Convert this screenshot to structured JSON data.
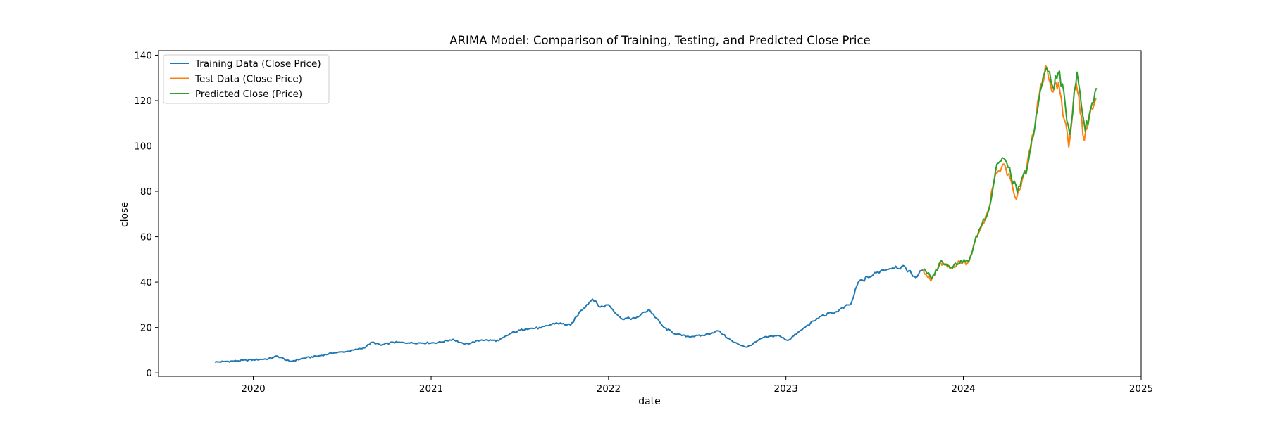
{
  "chart_data": {
    "type": "line",
    "title": "ARIMA Model: Comparison of Training, Testing, and Predicted Close Price",
    "xlabel": "date",
    "ylabel": "close",
    "xlim": [
      "2019-06-20",
      "2025-01-01"
    ],
    "ylim": [
      -1.5,
      142
    ],
    "x_ticks": [
      "2020",
      "2021",
      "2022",
      "2023",
      "2024",
      "2025"
    ],
    "y_ticks": [
      0,
      20,
      40,
      60,
      80,
      100,
      120,
      140
    ],
    "grid": false,
    "legend_position": "top-left",
    "series": [
      {
        "name": "Training Data (Close Price)",
        "color": "#1f77b4",
        "points": [
          [
            "2019-10-14",
            4.7
          ],
          [
            "2019-11-01",
            5.0
          ],
          [
            "2019-12-01",
            5.3
          ],
          [
            "2020-01-01",
            5.8
          ],
          [
            "2020-02-01",
            6.2
          ],
          [
            "2020-02-20",
            7.4
          ],
          [
            "2020-03-16",
            5.0
          ],
          [
            "2020-04-15",
            6.5
          ],
          [
            "2020-05-15",
            7.5
          ],
          [
            "2020-06-15",
            8.8
          ],
          [
            "2020-07-15",
            9.5
          ],
          [
            "2020-08-15",
            11.0
          ],
          [
            "2020-09-02",
            13.5
          ],
          [
            "2020-09-20",
            12.2
          ],
          [
            "2020-10-15",
            13.5
          ],
          [
            "2020-11-15",
            13.2
          ],
          [
            "2020-12-15",
            13.2
          ],
          [
            "2021-01-15",
            13.3
          ],
          [
            "2021-02-15",
            14.8
          ],
          [
            "2021-03-10",
            12.5
          ],
          [
            "2021-04-15",
            14.5
          ],
          [
            "2021-05-20",
            14.2
          ],
          [
            "2021-06-15",
            17.5
          ],
          [
            "2021-07-15",
            19.5
          ],
          [
            "2021-08-15",
            19.8
          ],
          [
            "2021-09-15",
            22.0
          ],
          [
            "2021-10-15",
            21.0
          ],
          [
            "2021-11-05",
            27.5
          ],
          [
            "2021-11-29",
            32.5
          ],
          [
            "2021-12-15",
            29.0
          ],
          [
            "2022-01-01",
            30.0
          ],
          [
            "2022-01-27",
            24.0
          ],
          [
            "2022-02-25",
            24.0
          ],
          [
            "2022-03-25",
            28.0
          ],
          [
            "2022-04-25",
            20.0
          ],
          [
            "2022-05-20",
            17.0
          ],
          [
            "2022-06-15",
            16.0
          ],
          [
            "2022-07-15",
            16.5
          ],
          [
            "2022-08-15",
            18.5
          ],
          [
            "2022-09-15",
            13.5
          ],
          [
            "2022-10-13",
            11.3
          ],
          [
            "2022-11-15",
            15.5
          ],
          [
            "2022-12-15",
            16.5
          ],
          [
            "2023-01-05",
            14.3
          ],
          [
            "2023-02-15",
            21.0
          ],
          [
            "2023-03-15",
            25.0
          ],
          [
            "2023-04-15",
            27.0
          ],
          [
            "2023-05-15",
            30.5
          ],
          [
            "2023-05-30",
            40.0
          ],
          [
            "2023-06-20",
            42.0
          ],
          [
            "2023-07-15",
            45.0
          ],
          [
            "2023-08-15",
            47.0
          ],
          [
            "2023-09-05",
            46.0
          ],
          [
            "2023-09-25",
            42.0
          ],
          [
            "2023-10-10",
            45.5
          ]
        ]
      },
      {
        "name": "Test Data (Close Price)",
        "color": "#ff7f0e",
        "points": [
          [
            "2023-10-10",
            45.5
          ],
          [
            "2023-10-26",
            40.5
          ],
          [
            "2023-11-15",
            48.5
          ],
          [
            "2023-12-05",
            46.0
          ],
          [
            "2023-12-25",
            49.0
          ],
          [
            "2024-01-10",
            48.5
          ],
          [
            "2024-01-31",
            61.0
          ],
          [
            "2024-02-22",
            72.0
          ],
          [
            "2024-03-08",
            88.0
          ],
          [
            "2024-03-25",
            92.0
          ],
          [
            "2024-04-19",
            76.5
          ],
          [
            "2024-05-10",
            90.0
          ],
          [
            "2024-05-25",
            106.0
          ],
          [
            "2024-06-05",
            122.0
          ],
          [
            "2024-06-18",
            135.5
          ],
          [
            "2024-07-01",
            124.0
          ],
          [
            "2024-07-15",
            128.0
          ],
          [
            "2024-08-05",
            99.5
          ],
          [
            "2024-08-20",
            128.0
          ],
          [
            "2024-09-06",
            102.5
          ],
          [
            "2024-09-20",
            117.0
          ],
          [
            "2024-09-30",
            121.0
          ]
        ]
      },
      {
        "name": "Predicted Close (Price)",
        "color": "#2ca02c",
        "points": [
          [
            "2023-10-12",
            46.0
          ],
          [
            "2023-10-28",
            41.5
          ],
          [
            "2023-11-17",
            49.5
          ],
          [
            "2023-12-07",
            46.5
          ],
          [
            "2023-12-27",
            49.5
          ],
          [
            "2024-01-12",
            49.0
          ],
          [
            "2024-02-02",
            63.0
          ],
          [
            "2024-02-24",
            73.0
          ],
          [
            "2024-03-10",
            92.0
          ],
          [
            "2024-03-27",
            94.0
          ],
          [
            "2024-04-21",
            79.5
          ],
          [
            "2024-05-12",
            91.0
          ],
          [
            "2024-05-27",
            108.0
          ],
          [
            "2024-06-07",
            124.0
          ],
          [
            "2024-06-20",
            134.5
          ],
          [
            "2024-07-03",
            126.0
          ],
          [
            "2024-07-17",
            133.0
          ],
          [
            "2024-08-07",
            105.0
          ],
          [
            "2024-08-22",
            132.5
          ],
          [
            "2024-09-08",
            106.5
          ],
          [
            "2024-09-22",
            119.0
          ],
          [
            "2024-10-01",
            125.5
          ]
        ]
      }
    ]
  }
}
